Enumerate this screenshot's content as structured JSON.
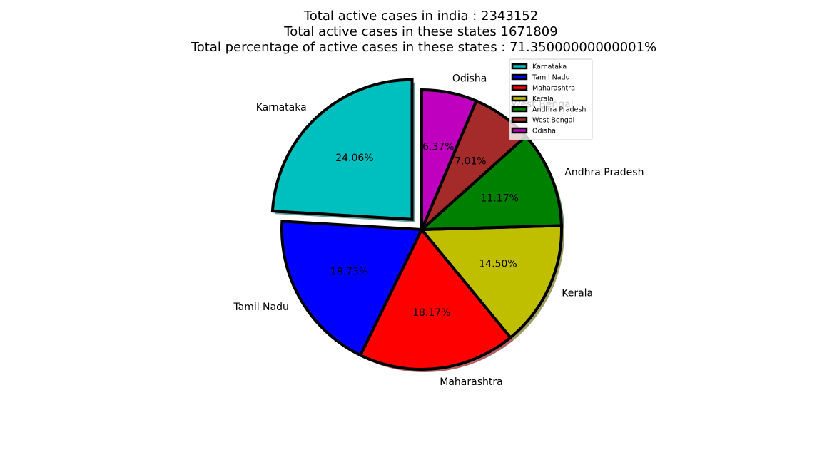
{
  "chart_data": {
    "type": "pie",
    "title_lines": [
      "Total active cases in india  : 2343152",
      "Total active cases in these states 1671809",
      "Total percentage of active cases in these states : 71.35000000000001%"
    ],
    "slices": [
      {
        "label": "Karnataka",
        "value": 24.06,
        "pct_text": "24.06%",
        "color": "#00bfbf",
        "exploded": true
      },
      {
        "label": "Tamil Nadu",
        "value": 18.73,
        "pct_text": "18.73%",
        "color": "#0000ff",
        "exploded": false
      },
      {
        "label": "Maharashtra",
        "value": 18.17,
        "pct_text": "18.17%",
        "color": "#ff0000",
        "exploded": false
      },
      {
        "label": "Kerala",
        "value": 14.5,
        "pct_text": "14.50%",
        "color": "#bfbf00",
        "exploded": false
      },
      {
        "label": "Andhra Pradesh",
        "value": 11.17,
        "pct_text": "11.17%",
        "color": "#008000",
        "exploded": false
      },
      {
        "label": "West Bengal",
        "value": 7.01,
        "pct_text": "7.01%",
        "color": "#a52a2a",
        "exploded": false
      },
      {
        "label": "Odisha",
        "value": 6.37,
        "pct_text": "6.37%",
        "color": "#bf00bf",
        "exploded": false
      }
    ],
    "start_angle_deg": 90,
    "shadow": true,
    "legend_placement": "top-right"
  }
}
